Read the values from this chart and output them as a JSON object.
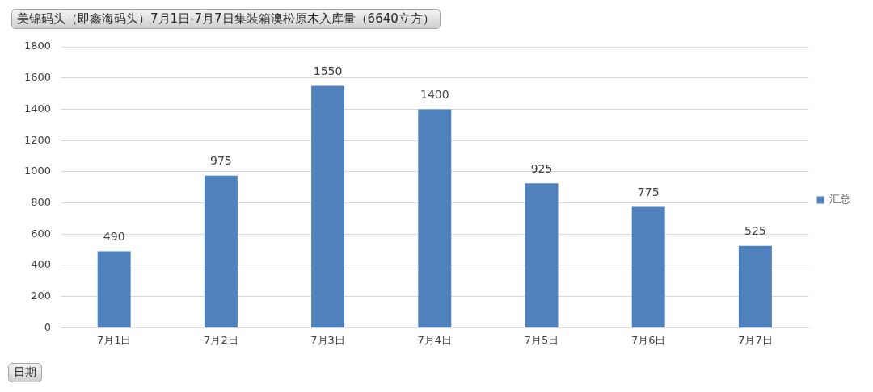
{
  "chart_data": {
    "type": "bar",
    "title": "美锦码头（即鑫海码头）7月1日-7月7日集装箱澳松原木入库量（6640立方）",
    "xlabel": "日期",
    "categories": [
      "7月1日",
      "7月2日",
      "7月3日",
      "7月4日",
      "7月5日",
      "7月6日",
      "7月7日"
    ],
    "series": [
      {
        "name": "汇总",
        "color": "#4f81bd",
        "values": [
          490,
          975,
          1550,
          1400,
          925,
          775,
          525
        ]
      }
    ],
    "ylim": [
      0,
      1800
    ],
    "yticks": [
      0,
      200,
      400,
      600,
      800,
      1000,
      1200,
      1400,
      1600,
      1800
    ],
    "grid": "y",
    "legend": "right",
    "data_labels": true
  }
}
